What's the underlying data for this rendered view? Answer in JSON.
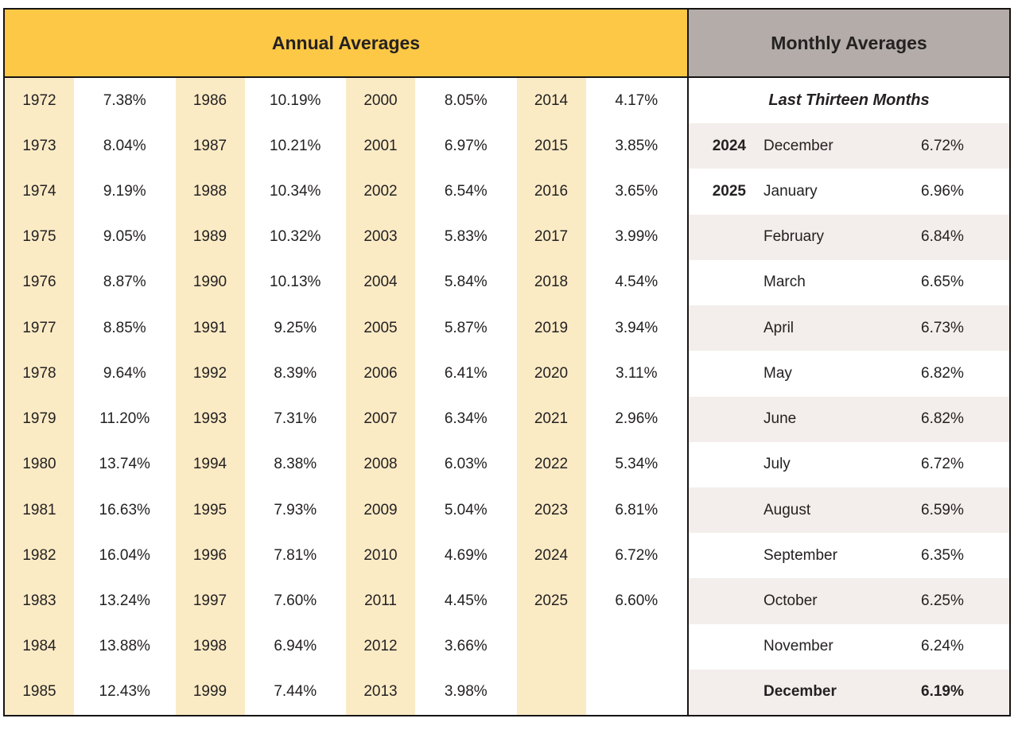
{
  "colors": {
    "annual_header_bg": "#FDC845",
    "monthly_header_bg": "#B3ACA8",
    "year_band_bg": "#FBEBC5",
    "alt_row_bg": "#F3EEEB",
    "border": "#161413",
    "text": "#242122",
    "page_bg": "#FFFFFF"
  },
  "chart_data": {
    "type": "table",
    "annual": {
      "title": "Annual Averages",
      "row_count": 14,
      "columns": [
        [
          {
            "year": "1972",
            "rate": "7.38%"
          },
          {
            "year": "1973",
            "rate": "8.04%"
          },
          {
            "year": "1974",
            "rate": "9.19%"
          },
          {
            "year": "1975",
            "rate": "9.05%"
          },
          {
            "year": "1976",
            "rate": "8.87%"
          },
          {
            "year": "1977",
            "rate": "8.85%"
          },
          {
            "year": "1978",
            "rate": "9.64%"
          },
          {
            "year": "1979",
            "rate": "11.20%"
          },
          {
            "year": "1980",
            "rate": "13.74%"
          },
          {
            "year": "1981",
            "rate": "16.63%"
          },
          {
            "year": "1982",
            "rate": "16.04%"
          },
          {
            "year": "1983",
            "rate": "13.24%"
          },
          {
            "year": "1984",
            "rate": "13.88%"
          },
          {
            "year": "1985",
            "rate": "12.43%"
          }
        ],
        [
          {
            "year": "1986",
            "rate": "10.19%"
          },
          {
            "year": "1987",
            "rate": "10.21%"
          },
          {
            "year": "1988",
            "rate": "10.34%"
          },
          {
            "year": "1989",
            "rate": "10.32%"
          },
          {
            "year": "1990",
            "rate": "10.13%"
          },
          {
            "year": "1991",
            "rate": "9.25%"
          },
          {
            "year": "1992",
            "rate": "8.39%"
          },
          {
            "year": "1993",
            "rate": "7.31%"
          },
          {
            "year": "1994",
            "rate": "8.38%"
          },
          {
            "year": "1995",
            "rate": "7.93%"
          },
          {
            "year": "1996",
            "rate": "7.81%"
          },
          {
            "year": "1997",
            "rate": "7.60%"
          },
          {
            "year": "1998",
            "rate": "6.94%"
          },
          {
            "year": "1999",
            "rate": "7.44%"
          }
        ],
        [
          {
            "year": "2000",
            "rate": "8.05%"
          },
          {
            "year": "2001",
            "rate": "6.97%"
          },
          {
            "year": "2002",
            "rate": "6.54%"
          },
          {
            "year": "2003",
            "rate": "5.83%"
          },
          {
            "year": "2004",
            "rate": "5.84%"
          },
          {
            "year": "2005",
            "rate": "5.87%"
          },
          {
            "year": "2006",
            "rate": "6.41%"
          },
          {
            "year": "2007",
            "rate": "6.34%"
          },
          {
            "year": "2008",
            "rate": "6.03%"
          },
          {
            "year": "2009",
            "rate": "5.04%"
          },
          {
            "year": "2010",
            "rate": "4.69%"
          },
          {
            "year": "2011",
            "rate": "4.45%"
          },
          {
            "year": "2012",
            "rate": "3.66%"
          },
          {
            "year": "2013",
            "rate": "3.98%"
          }
        ],
        [
          {
            "year": "2014",
            "rate": "4.17%"
          },
          {
            "year": "2015",
            "rate": "3.85%"
          },
          {
            "year": "2016",
            "rate": "3.65%"
          },
          {
            "year": "2017",
            "rate": "3.99%"
          },
          {
            "year": "2018",
            "rate": "4.54%"
          },
          {
            "year": "2019",
            "rate": "3.94%"
          },
          {
            "year": "2020",
            "rate": "3.11%"
          },
          {
            "year": "2021",
            "rate": "2.96%"
          },
          {
            "year": "2022",
            "rate": "5.34%"
          },
          {
            "year": "2023",
            "rate": "6.81%"
          },
          {
            "year": "2024",
            "rate": "6.72%"
          },
          {
            "year": "2025",
            "rate": "6.60%"
          }
        ]
      ]
    },
    "monthly": {
      "title": "Monthly Averages",
      "subtitle": "Last Thirteen Months",
      "rows": [
        {
          "year": "2024",
          "month": "December",
          "rate": "6.72%"
        },
        {
          "year": "2025",
          "month": "January",
          "rate": "6.96%"
        },
        {
          "year": "",
          "month": "February",
          "rate": "6.84%"
        },
        {
          "year": "",
          "month": "March",
          "rate": "6.65%"
        },
        {
          "year": "",
          "month": "April",
          "rate": "6.73%"
        },
        {
          "year": "",
          "month": "May",
          "rate": "6.82%"
        },
        {
          "year": "",
          "month": "June",
          "rate": "6.82%"
        },
        {
          "year": "",
          "month": "July",
          "rate": "6.72%"
        },
        {
          "year": "",
          "month": "August",
          "rate": "6.59%"
        },
        {
          "year": "",
          "month": "September",
          "rate": "6.35%"
        },
        {
          "year": "",
          "month": "October",
          "rate": "6.25%"
        },
        {
          "year": "",
          "month": "November",
          "rate": "6.24%"
        },
        {
          "year": "",
          "month": "December",
          "rate": "6.19%",
          "bold": true
        }
      ]
    }
  }
}
